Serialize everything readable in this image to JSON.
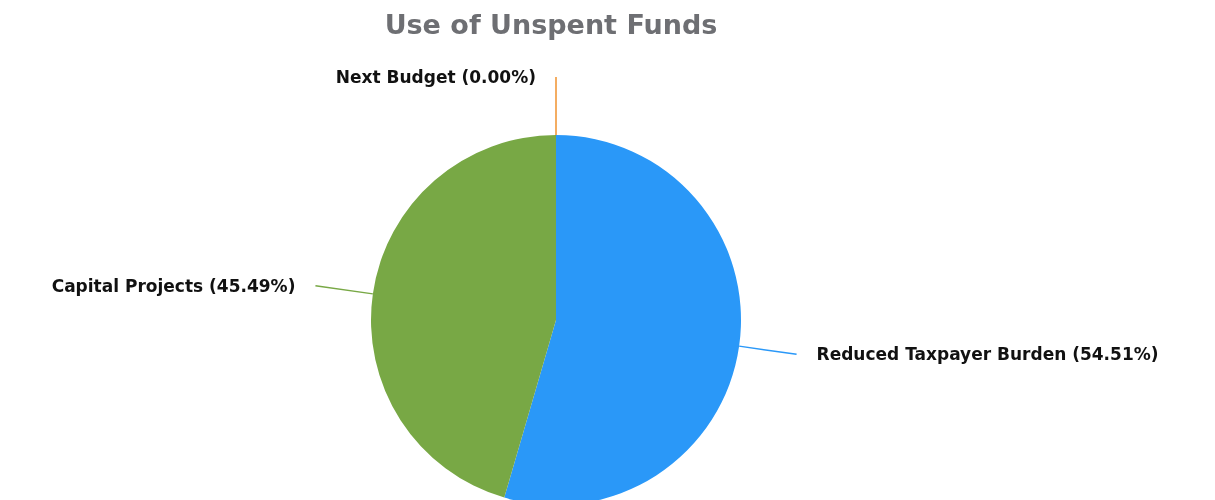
{
  "chart_data": {
    "type": "pie",
    "title": "Use of Unspent Funds",
    "categories": [
      "Reduced Taxpayer Burden",
      "Capital Projects",
      "Next Budget"
    ],
    "values": [
      54.51,
      45.49,
      0
    ],
    "value_labels": [
      "(54.51%)",
      "(45.49%)",
      "(0.00%)"
    ],
    "colors": [
      "#2a98f8",
      "#78a845",
      "#f0922e"
    ],
    "legend": false
  }
}
